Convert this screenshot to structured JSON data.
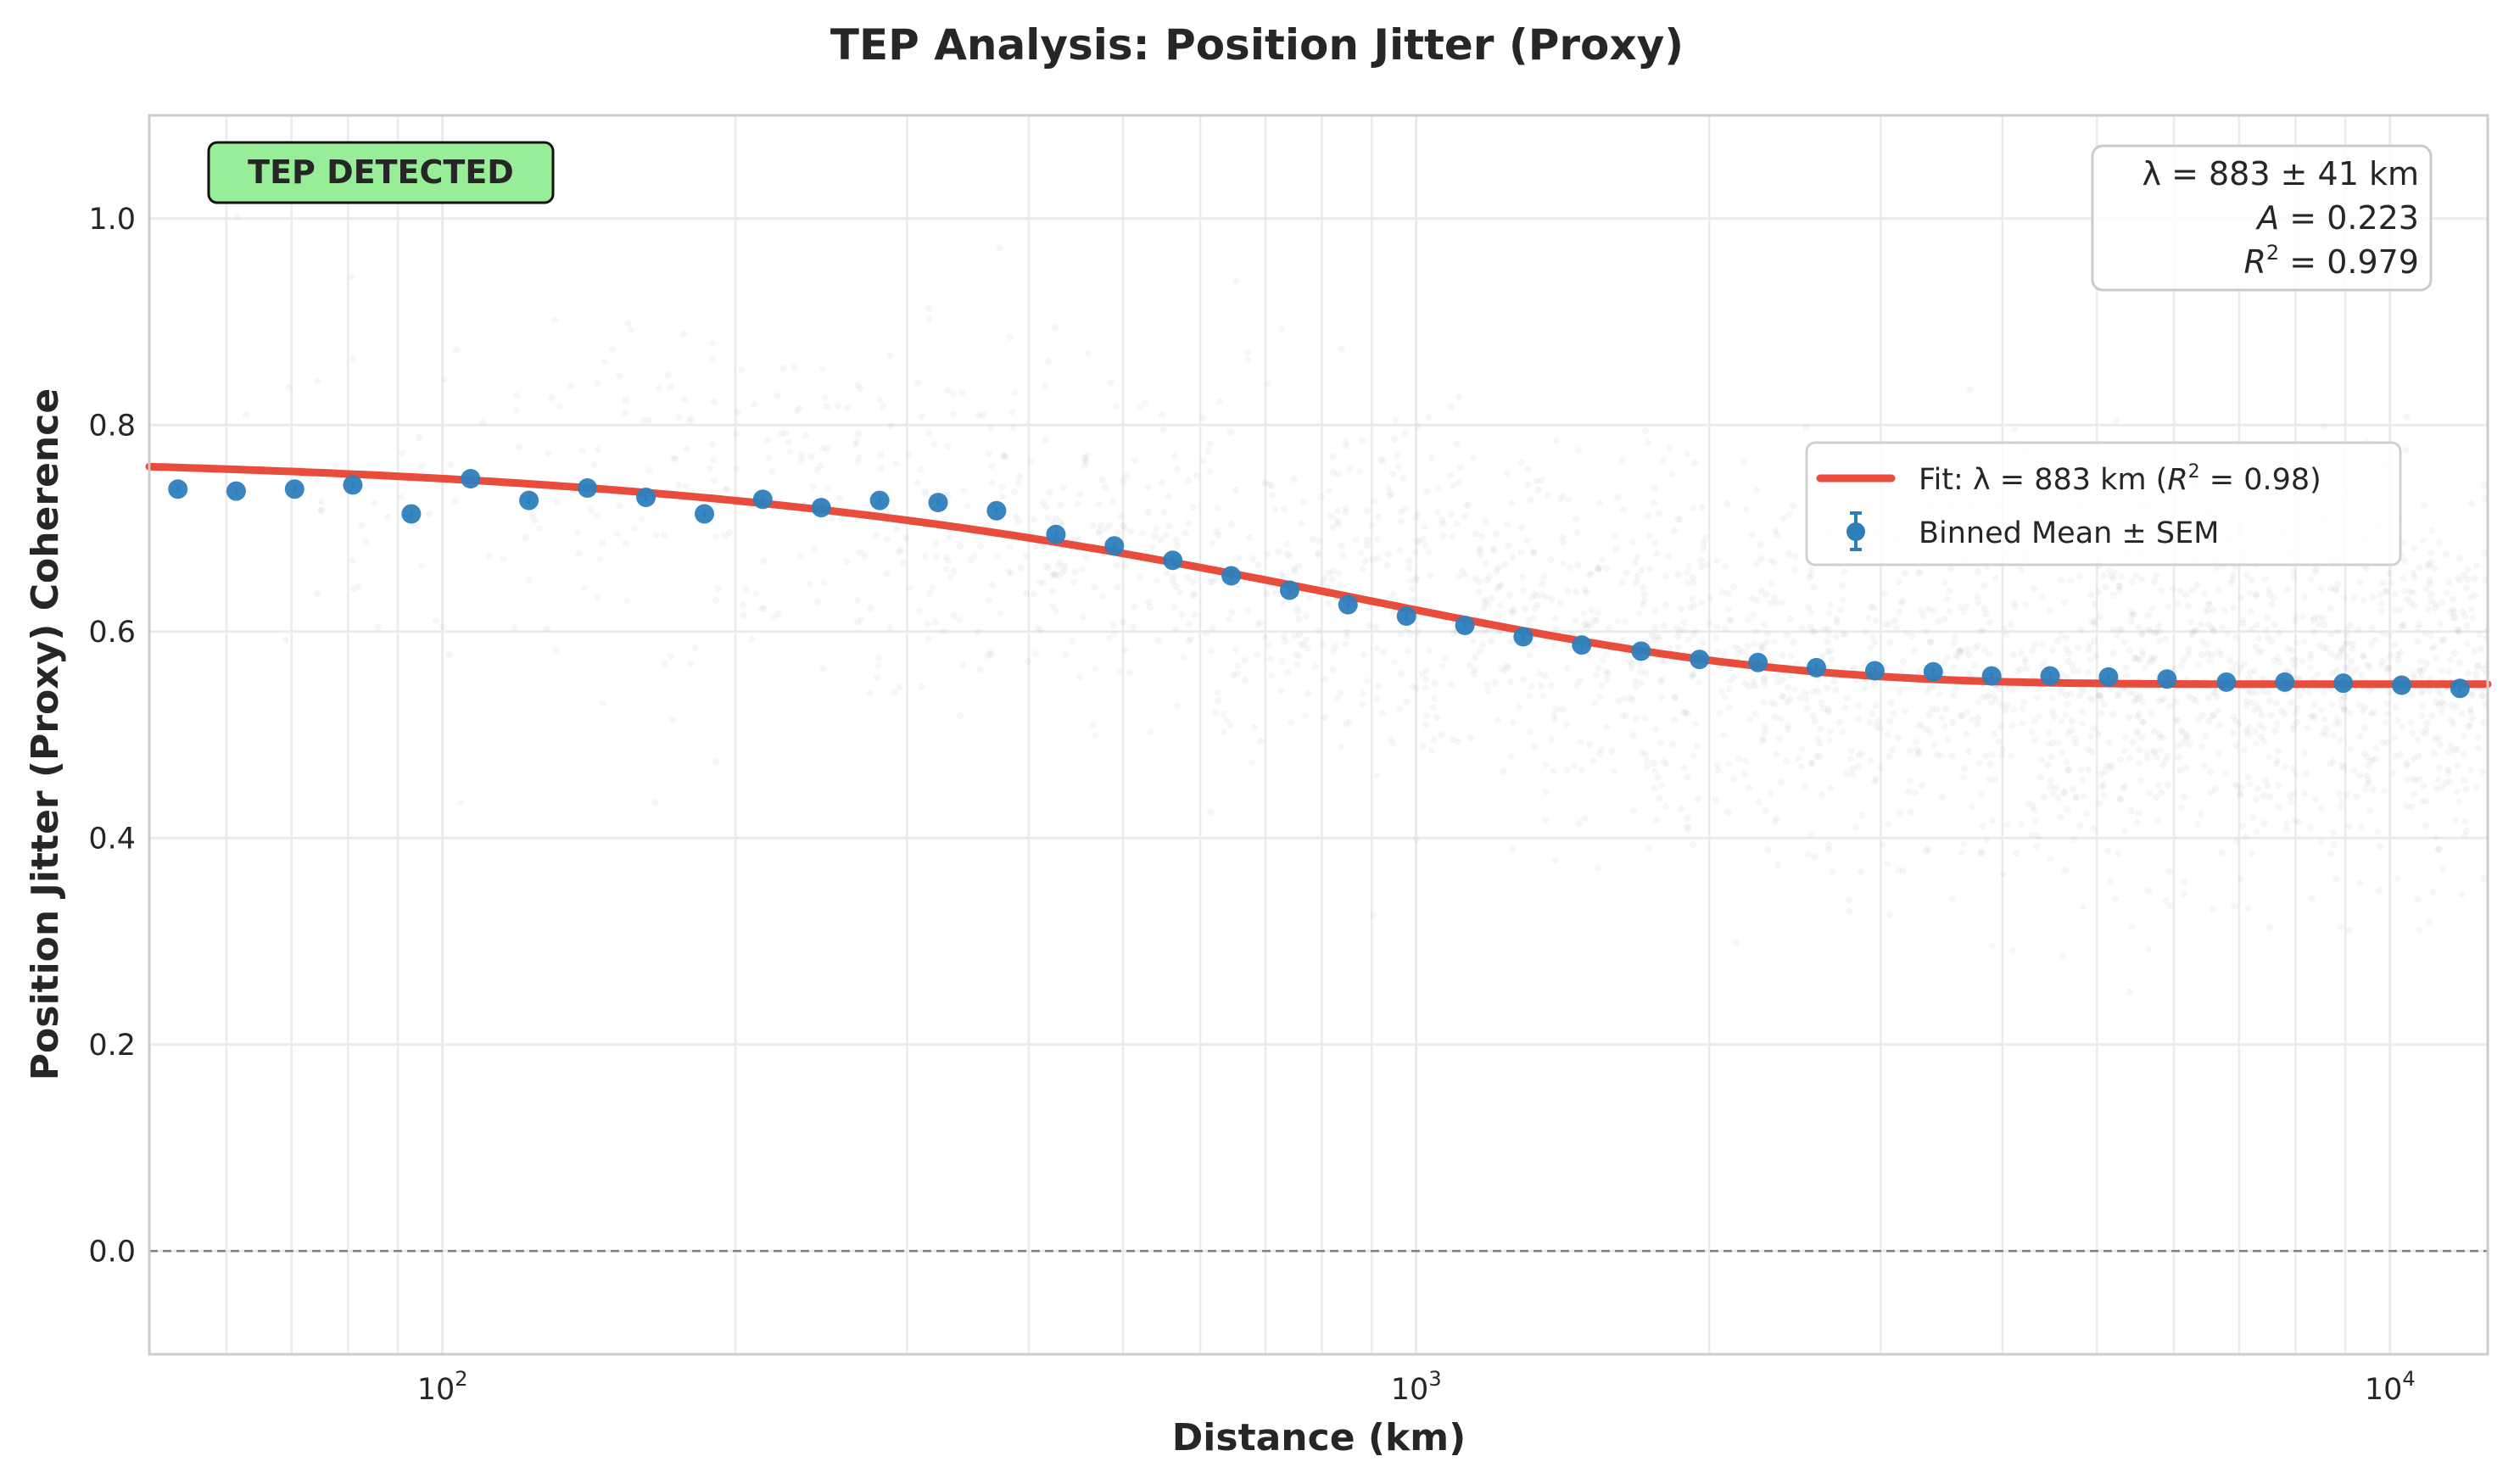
{
  "chart_data": {
    "type": "scatter",
    "title": "TEP Analysis: Position Jitter (Proxy)",
    "xlabel": "Distance (km)",
    "ylabel": "Position Jitter (Proxy) Coherence",
    "xscale": "log",
    "xlim": [
      50,
      12600
    ],
    "ylim": [
      -0.1,
      1.1
    ],
    "x_ticks": [
      {
        "value": 100,
        "base": "10",
        "exp": "2"
      },
      {
        "value": 1000,
        "base": "10",
        "exp": "3"
      },
      {
        "value": 10000,
        "base": "10",
        "exp": "4"
      }
    ],
    "y_ticks": [
      {
        "value": 0.0,
        "label": "0.0"
      },
      {
        "value": 0.2,
        "label": "0.2"
      },
      {
        "value": 0.4,
        "label": "0.4"
      },
      {
        "value": 0.6,
        "label": "0.6"
      },
      {
        "value": 0.8,
        "label": "0.8"
      },
      {
        "value": 1.0,
        "label": "1.0"
      }
    ],
    "grid": true,
    "reference_line": {
      "y": 0,
      "style": "dashed",
      "color": "#808080"
    },
    "binned": {
      "name": "Binned Mean ± SEM",
      "color": "#2e7ebc",
      "x": [
        53.5,
        61.4,
        70.5,
        80.9,
        92.9,
        106.9,
        122.7,
        140.9,
        161.8,
        185.8,
        213.3,
        244.9,
        281.2,
        322.9,
        370.7,
        426.6,
        489.8,
        562.3,
        645.7,
        741.3,
        851.1,
        977.2,
        1122,
        1288,
        1479,
        1702,
        1954,
        2244,
        2576,
        2958,
        3396,
        3899,
        4477,
        5140,
        5902,
        6792,
        7798,
        8954,
        10280,
        11800
      ],
      "y": [
        0.738,
        0.736,
        0.738,
        0.742,
        0.714,
        0.748,
        0.727,
        0.739,
        0.73,
        0.714,
        0.728,
        0.72,
        0.727,
        0.725,
        0.717,
        0.694,
        0.683,
        0.669,
        0.654,
        0.64,
        0.626,
        0.615,
        0.606,
        0.595,
        0.587,
        0.581,
        0.573,
        0.57,
        0.565,
        0.562,
        0.561,
        0.557,
        0.557,
        0.556,
        0.554,
        0.551,
        0.551,
        0.55,
        0.548,
        0.545
      ]
    },
    "fit": {
      "name": "Fit: λ = 883 km (R² = 0.98)",
      "color": "#e74c3c",
      "model": "A*exp(-x/lambda)+C",
      "lambda": 883,
      "A": 0.223,
      "C": 0.549
    },
    "raw_pairs_color": "#b0b8bc",
    "legend": {
      "placement": "center-right",
      "fit_prefix": "Fit: λ = 883 km (",
      "fit_r": "R",
      "fit_sup": "2",
      "fit_suffix": " = 0.98)",
      "binned_label": "Binned Mean ± SEM"
    },
    "stats_box": {
      "placement": "top-right",
      "line1": "λ = 883 ± 41 km",
      "line2_var": "A",
      "line2_rest": " = 0.223",
      "line3_var": "R",
      "line3_sup": "2",
      "line3_rest": " = 0.979"
    },
    "badge": {
      "text": "TEP DETECTED",
      "color": "#98ee98",
      "placement": "top-left"
    }
  }
}
